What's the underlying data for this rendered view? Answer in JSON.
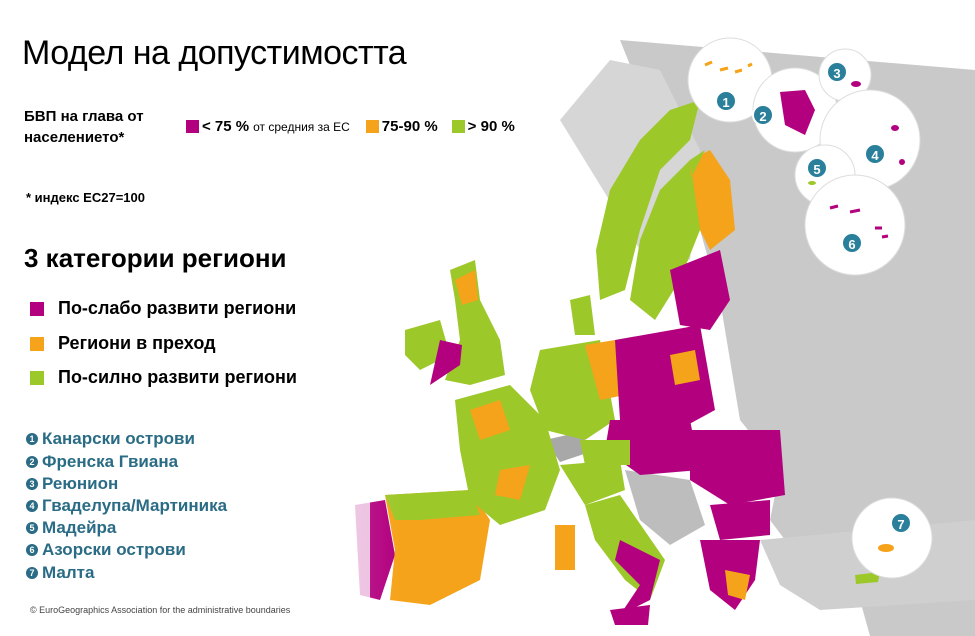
{
  "title": "Модел на допустимостта",
  "gdp": {
    "label": "БВП на глава от населението*",
    "legend": [
      {
        "label": "< 75 %",
        "note": "от средния за ЕС",
        "color": "#b2007f"
      },
      {
        "label": "75-90 %",
        "note": "",
        "color": "#f5a31a"
      },
      {
        "label": "> 90 %",
        "note": "",
        "color": "#9dc82a"
      }
    ]
  },
  "footnote": "* индекс ЕС27=100",
  "categories": {
    "title": "3 категории региони",
    "items": [
      {
        "label": "По-слабо развити региони",
        "color": "#b2007f"
      },
      {
        "label": "Региони в преход",
        "color": "#f5a31a"
      },
      {
        "label": "По-силно развити региони",
        "color": "#9dc82a"
      }
    ]
  },
  "islands": [
    {
      "num": "1",
      "label": "Канарски острови"
    },
    {
      "num": "2",
      "label": "Френска Гвиана"
    },
    {
      "num": "3",
      "label": "Реюнион"
    },
    {
      "num": "4",
      "label": "Гваделупа/Мартиника"
    },
    {
      "num": "5",
      "label": "Мадейра"
    },
    {
      "num": "6",
      "label": "Азорски острови"
    },
    {
      "num": "7",
      "label": "Малта"
    }
  ],
  "credit": "© EuroGeographics Association for the administrative boundaries",
  "colors": {
    "less": "#b2007f",
    "transition": "#f5a31a",
    "more": "#9dc82a",
    "nonEU": "#c8c8c8",
    "sea": "#ffffff"
  }
}
